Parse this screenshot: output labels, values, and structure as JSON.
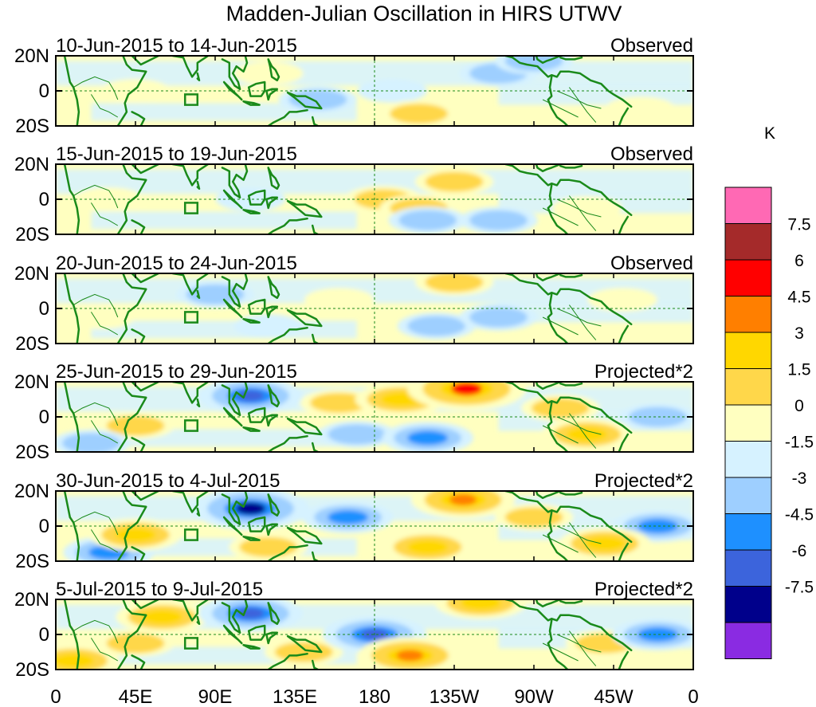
{
  "chart_data": {
    "type": "heatmap",
    "title": "Madden-Julian Oscillation in HIRS UTWV",
    "variable": "HIRS UTWV",
    "x_ticks": [
      "0",
      "45E",
      "90E",
      "135E",
      "180",
      "135W",
      "90W",
      "45W",
      "0"
    ],
    "y_ticks": [
      "20N",
      "0",
      "20S"
    ],
    "xlim": [
      0,
      360
    ],
    "ylim": [
      -20,
      20
    ],
    "colorbar": {
      "unit": "K",
      "tick_labels": [
        "7.5",
        "6",
        "4.5",
        "3",
        "1.5",
        "0",
        "-1.5",
        "-3",
        "-4.5",
        "-6",
        "-7.5"
      ],
      "bins": [
        {
          "range": "> 9",
          "color": "#ff69b4"
        },
        {
          "range": "7.5 to 9",
          "color": "#a52a2a"
        },
        {
          "range": "6 to 7.5",
          "color": "#ff0000"
        },
        {
          "range": "4.5 to 6",
          "color": "#ff7f00"
        },
        {
          "range": "3 to 4.5",
          "color": "#ffd700"
        },
        {
          "range": "1.5 to 3",
          "color": "#ffd74a"
        },
        {
          "range": "0 to 1.5",
          "color": "#ffffc0"
        },
        {
          "range": "-1.5 to 0",
          "color": "#d6f2ff"
        },
        {
          "range": "-3 to -1.5",
          "color": "#9ecfff"
        },
        {
          "range": "-4.5 to -3",
          "color": "#1e90ff"
        },
        {
          "range": "-6 to -4.5",
          "color": "#3c64dc"
        },
        {
          "range": "-7.5 to -6",
          "color": "#00008b"
        },
        {
          "range": "< -7.5",
          "color": "#8a2be2"
        }
      ]
    },
    "panels": [
      {
        "period": "10-Jun-2015 to 14-Jun-2015",
        "kind": "Observed",
        "anomalies": [
          {
            "lon": 250,
            "lat": 10,
            "value": -1.6
          },
          {
            "lon": 148,
            "lat": -5,
            "value": -1.6
          },
          {
            "lon": 205,
            "lat": -13,
            "value": 1.6
          },
          {
            "lon": 270,
            "lat": 17,
            "value": -1.6
          },
          {
            "lon": 45,
            "lat": 0,
            "value": 0.6
          },
          {
            "lon": 120,
            "lat": 10,
            "value": 0.6
          },
          {
            "lon": 190,
            "lat": 0,
            "value": -0.6
          },
          {
            "lon": 330,
            "lat": -10,
            "value": 0.6
          }
        ]
      },
      {
        "period": "15-Jun-2015 to 19-Jun-2015",
        "kind": "Observed",
        "anomalies": [
          {
            "lon": 225,
            "lat": 10,
            "value": 1.6
          },
          {
            "lon": 185,
            "lat": 0,
            "value": 1.6
          },
          {
            "lon": 205,
            "lat": -5,
            "value": 1.6
          },
          {
            "lon": 210,
            "lat": -12,
            "value": -1.6
          },
          {
            "lon": 250,
            "lat": -12,
            "value": -1.6
          },
          {
            "lon": 30,
            "lat": 0,
            "value": 0.6
          },
          {
            "lon": 300,
            "lat": -5,
            "value": 0.6
          },
          {
            "lon": 110,
            "lat": 0,
            "value": -0.6
          }
        ]
      },
      {
        "period": "20-Jun-2015 to 24-Jun-2015",
        "kind": "Observed",
        "anomalies": [
          {
            "lon": 225,
            "lat": 15,
            "value": 1.6
          },
          {
            "lon": 90,
            "lat": 8,
            "value": -1.6
          },
          {
            "lon": 215,
            "lat": -10,
            "value": -1.6
          },
          {
            "lon": 250,
            "lat": -5,
            "value": -1.6
          },
          {
            "lon": 160,
            "lat": 5,
            "value": 0.6
          },
          {
            "lon": 25,
            "lat": -5,
            "value": 0.6
          },
          {
            "lon": 320,
            "lat": 5,
            "value": 0.6
          },
          {
            "lon": 120,
            "lat": -10,
            "value": -0.6
          }
        ]
      },
      {
        "period": "25-Jun-2015 to 29-Jun-2015",
        "kind": "Projected*2",
        "anomalies": [
          {
            "lon": 232,
            "lat": 16,
            "value": 6.3
          },
          {
            "lon": 110,
            "lat": 12,
            "value": -4.6
          },
          {
            "lon": 195,
            "lat": 10,
            "value": 3.2
          },
          {
            "lon": 160,
            "lat": 8,
            "value": 1.6
          },
          {
            "lon": 285,
            "lat": 5,
            "value": 1.6
          },
          {
            "lon": 210,
            "lat": -12,
            "value": -3.1
          },
          {
            "lon": 170,
            "lat": -10,
            "value": -1.6
          },
          {
            "lon": 45,
            "lat": -5,
            "value": 1.6
          },
          {
            "lon": 20,
            "lat": -15,
            "value": -1.6
          },
          {
            "lon": 300,
            "lat": -10,
            "value": 3.2
          },
          {
            "lon": 340,
            "lat": 0,
            "value": -1.6
          }
        ]
      },
      {
        "period": "30-Jun-2015 to 4-Jul-2015",
        "kind": "Projected*2",
        "anomalies": [
          {
            "lon": 230,
            "lat": 15,
            "value": 4.6
          },
          {
            "lon": 110,
            "lat": 10,
            "value": -6.1
          },
          {
            "lon": 165,
            "lat": 5,
            "value": -3.1
          },
          {
            "lon": 210,
            "lat": -12,
            "value": 3.2
          },
          {
            "lon": 45,
            "lat": -5,
            "value": 3.2
          },
          {
            "lon": 120,
            "lat": -12,
            "value": 1.6
          },
          {
            "lon": 310,
            "lat": -10,
            "value": 3.2
          },
          {
            "lon": 340,
            "lat": 0,
            "value": -3.1
          },
          {
            "lon": 30,
            "lat": -15,
            "value": -3.1
          },
          {
            "lon": 270,
            "lat": 5,
            "value": 1.6
          }
        ]
      },
      {
        "period": "5-Jul-2015 to 9-Jul-2015",
        "kind": "Projected*2",
        "anomalies": [
          {
            "lon": 110,
            "lat": 12,
            "value": -4.6
          },
          {
            "lon": 180,
            "lat": 0,
            "value": -4.6
          },
          {
            "lon": 240,
            "lat": 18,
            "value": 3.2
          },
          {
            "lon": 60,
            "lat": 10,
            "value": 3.2
          },
          {
            "lon": 200,
            "lat": -12,
            "value": 4.6
          },
          {
            "lon": 45,
            "lat": -5,
            "value": 1.6
          },
          {
            "lon": 140,
            "lat": -10,
            "value": 1.6
          },
          {
            "lon": 310,
            "lat": -5,
            "value": 1.6
          },
          {
            "lon": 340,
            "lat": 0,
            "value": -3.1
          },
          {
            "lon": 10,
            "lat": -15,
            "value": 3.2
          }
        ]
      }
    ]
  }
}
